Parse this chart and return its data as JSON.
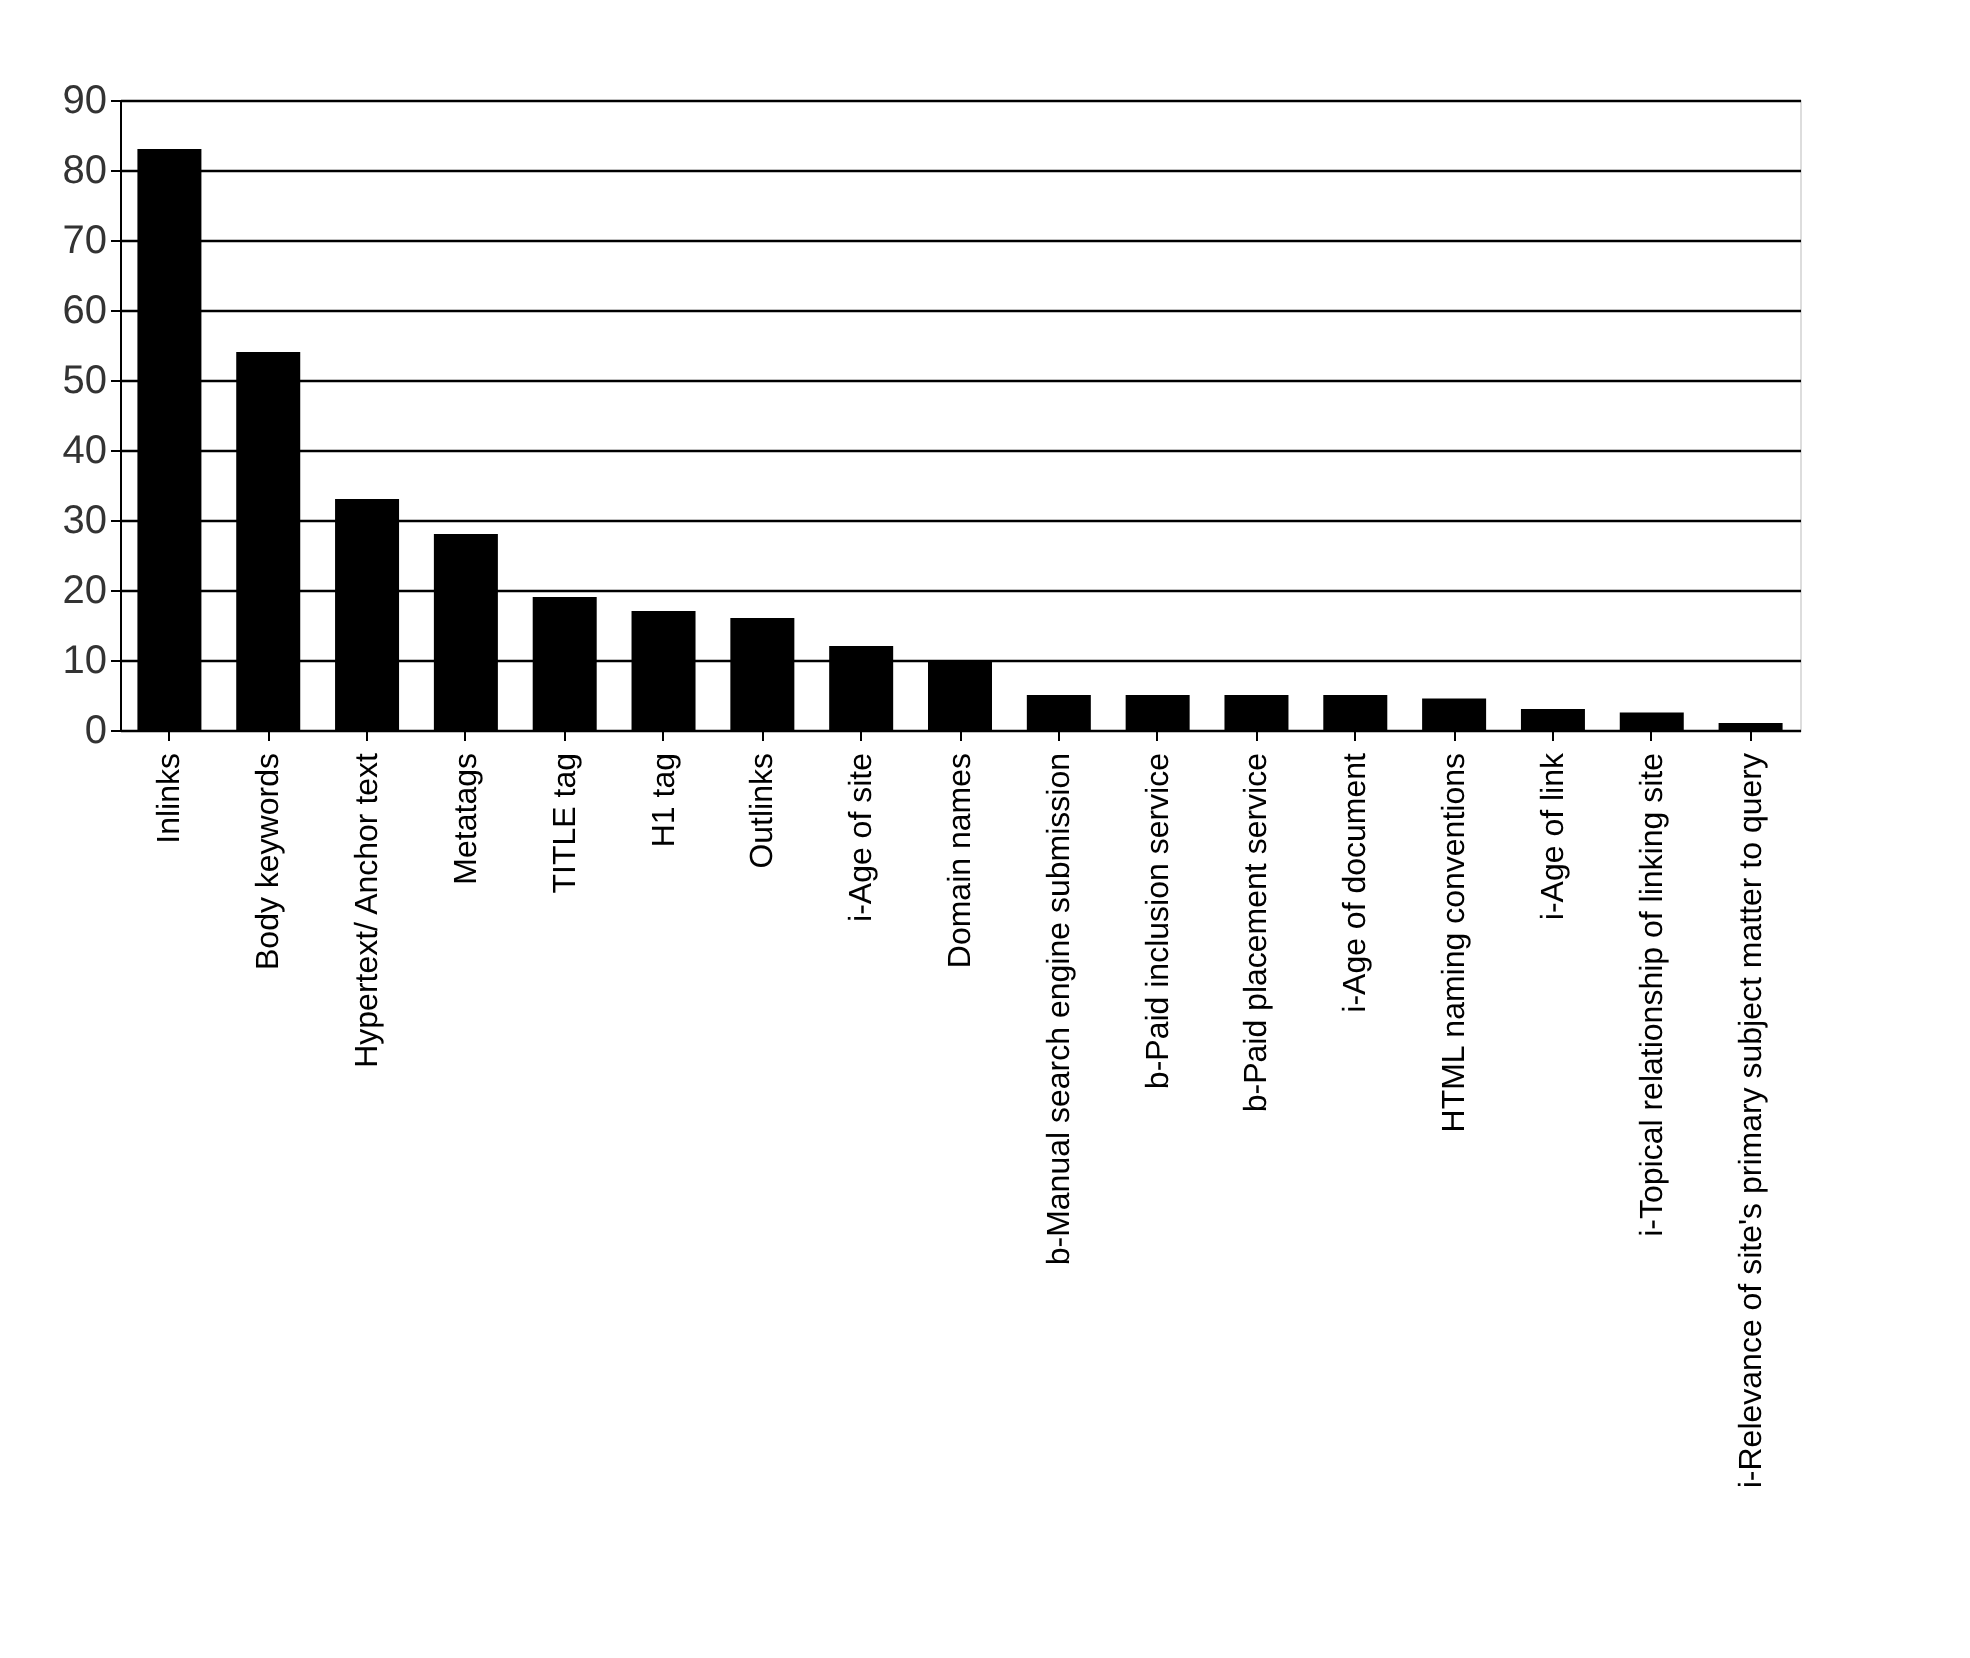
{
  "chart_data": {
    "type": "bar",
    "categories": [
      "Inlinks",
      "Body keywords",
      "Hypertext/ Anchor text",
      "Metatags",
      "TITLE tag",
      "H1 tag",
      "Outlinks",
      "i-Age of site",
      "Domain names",
      "b-Manual search engine submission",
      "b-Paid inclusion service",
      "b-Paid placement service",
      "i-Age of document",
      "HTML naming conventions",
      "i-Age of link",
      "i-Topical relationship of linking site",
      "i-Relevance of site's primary subject matter to query"
    ],
    "values": [
      83,
      54,
      33,
      28,
      19,
      17,
      16,
      12,
      10,
      5,
      5,
      5,
      5,
      4.5,
      3,
      2.5,
      1
    ],
    "color": "#000000",
    "ylim": [
      0,
      90
    ],
    "yticks": [
      0,
      10,
      20,
      30,
      40,
      50,
      60,
      70,
      80,
      90
    ],
    "grid": "y"
  }
}
